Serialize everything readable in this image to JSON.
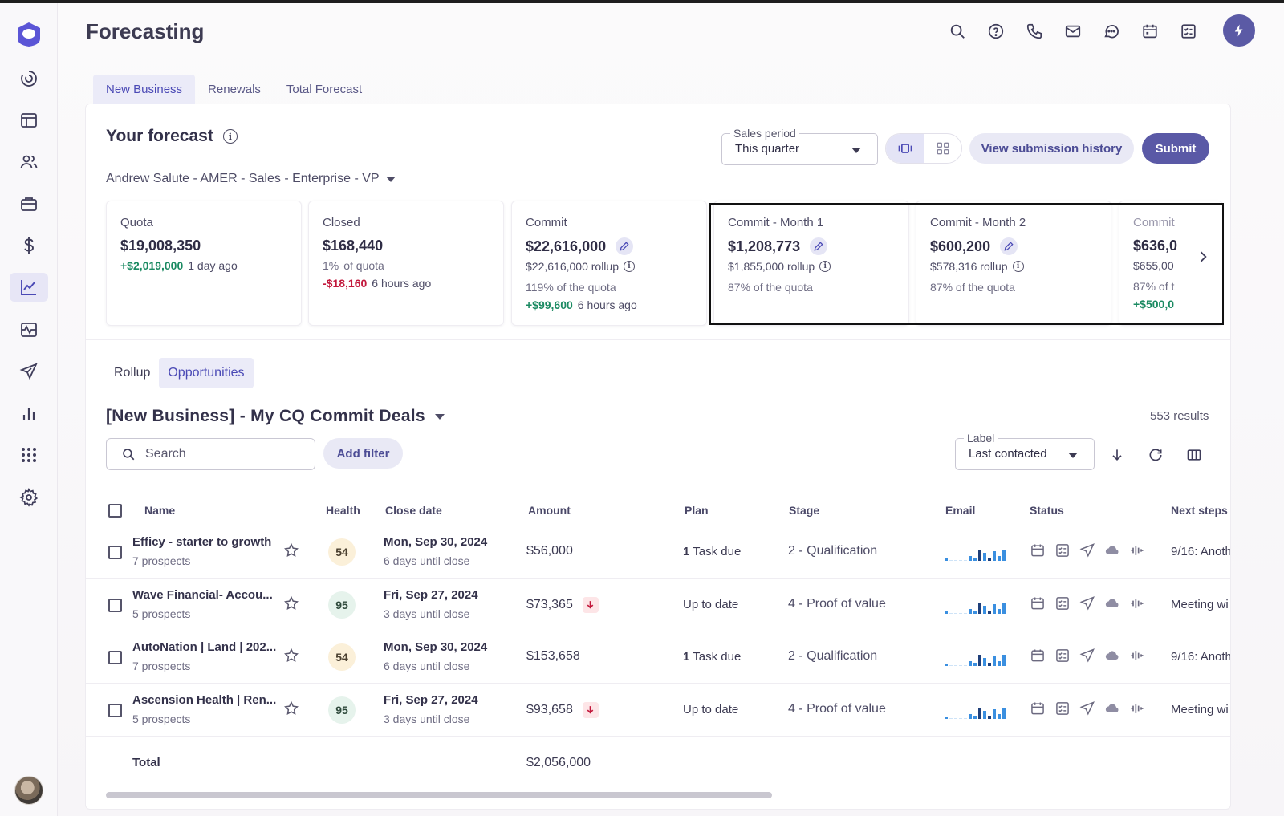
{
  "app": {
    "title": "Forecasting"
  },
  "sidebar": {
    "items": [
      {
        "icon": "spinner-icon"
      },
      {
        "icon": "layout-icon"
      },
      {
        "icon": "people-icon"
      },
      {
        "icon": "briefcase-icon"
      },
      {
        "icon": "dollar-icon"
      },
      {
        "icon": "trend-chart-icon",
        "active": true
      },
      {
        "icon": "activity-icon"
      },
      {
        "icon": "send-icon"
      },
      {
        "icon": "bar-chart-icon"
      },
      {
        "icon": "apps-grid-icon"
      },
      {
        "icon": "settings-icon"
      }
    ]
  },
  "header_icons": [
    "search-icon",
    "help-icon",
    "phone-icon",
    "mail-icon",
    "chat-icon",
    "calendar-icon",
    "tasks-icon"
  ],
  "tabs": [
    {
      "label": "New Business",
      "active": true
    },
    {
      "label": "Renewals"
    },
    {
      "label": "Total Forecast"
    }
  ],
  "forecast": {
    "title": "Your forecast",
    "owner": "Andrew Salute - AMER - Sales - Enterprise - VP",
    "sales_period_label": "Sales period",
    "sales_period_value": "This quarter",
    "history_button": "View submission history",
    "submit_button": "Submit"
  },
  "metrics": [
    {
      "title": "Quota",
      "value": "$19,008,350",
      "change": "+$2,019,000",
      "change_time": "1 day ago"
    },
    {
      "title": "Closed",
      "value": "$168,440",
      "pct": "1%",
      "pct_suffix": "of quota",
      "change": "-$18,160",
      "change_time": "6 hours ago"
    },
    {
      "title": "Commit",
      "value": "$22,616,000",
      "rollup": "$22,616,000 rollup",
      "pct_text": "119% of the quota",
      "change": "+$99,600",
      "change_time": "6 hours ago"
    },
    {
      "title": "Commit - Month 1",
      "value": "$1,208,773",
      "rollup": "$1,855,000 rollup",
      "pct_text": "87% of the quota"
    },
    {
      "title": "Commit - Month 2",
      "value": "$600,200",
      "rollup": "$578,316 rollup",
      "pct_text": "87% of the quota"
    },
    {
      "title": "Commit",
      "value": "$636,0",
      "rollup": "$655,00",
      "pct_text": "87% of t",
      "change": "+$500,0"
    }
  ],
  "subtabs": [
    {
      "label": "Rollup"
    },
    {
      "label": "Opportunities",
      "active": true
    }
  ],
  "view": {
    "title": "[New Business] - My CQ Commit Deals",
    "results": "553 results",
    "search_placeholder": "Search",
    "add_filter": "Add filter",
    "label_caption": "Label",
    "label_value": "Last contacted"
  },
  "table": {
    "columns": [
      "Name",
      "Health",
      "Close date",
      "Amount",
      "Plan",
      "Stage",
      "Email",
      "Status",
      "Next steps"
    ],
    "rows": [
      {
        "name": "Efficy - starter to growth",
        "prospects": "7 prospects",
        "health": "54",
        "health_level": "warn",
        "date": "Mon, Sep 30, 2024",
        "until": "6 days until close",
        "amount": "$56,000",
        "trend_down": false,
        "plan_num": "1",
        "plan": "Task due",
        "stage": "2 - Qualification",
        "next": "9/16: Anoth"
      },
      {
        "name": "Wave Financial- Accou...",
        "prospects": "5 prospects",
        "health": "95",
        "health_level": "good",
        "date": "Fri, Sep 27, 2024",
        "until": "3 days until close",
        "amount": "$73,365",
        "trend_down": true,
        "plan_num": "",
        "plan": "Up to date",
        "stage": "4 - Proof of value",
        "next": "Meeting wi"
      },
      {
        "name": "AutoNation | Land | 202...",
        "prospects": "7 prospects",
        "health": "54",
        "health_level": "warn",
        "date": "Mon, Sep 30, 2024",
        "until": "6 days until close",
        "amount": "$153,658",
        "trend_down": false,
        "plan_num": "1",
        "plan": "Task due",
        "stage": "2 - Qualification",
        "next": "9/16: Anoth"
      },
      {
        "name": "Ascension Health | Ren...",
        "prospects": "5 prospects",
        "health": "95",
        "health_level": "good",
        "date": "Fri, Sep 27, 2024",
        "until": "3 days until close",
        "amount": "$93,658",
        "trend_down": true,
        "plan_num": "",
        "plan": "Up to date",
        "stage": "4 - Proof of value",
        "next": "Meeting wi"
      }
    ],
    "total_label": "Total",
    "total_amount": "$2,056,000"
  },
  "colors": {
    "accent": "#5a59a6",
    "positive": "#1b8a62",
    "negative": "#c2183c"
  }
}
